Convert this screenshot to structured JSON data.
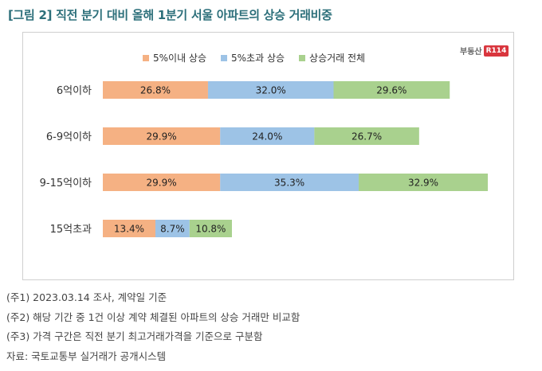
{
  "title": "[그림 2] 직전 분기 대비 올해 1분기 서울 아파트의 상승 거래비중",
  "logo": {
    "text": "부동산",
    "badge": "R114"
  },
  "colors": {
    "series1": "#f5b183",
    "series2": "#9dc3e6",
    "series3": "#a9d18e"
  },
  "chart_data": {
    "type": "bar",
    "orientation": "horizontal",
    "stacked": true,
    "categories": [
      "6억이하",
      "6-9억이하",
      "9-15억이하",
      "15억초과"
    ],
    "series": [
      {
        "name": "5%이내 상승",
        "values": [
          26.8,
          29.9,
          29.9,
          13.4
        ],
        "labels": [
          "26.8%",
          "29.9%",
          "29.9%",
          "13.4%"
        ]
      },
      {
        "name": "5%초과 상승",
        "values": [
          32.0,
          24.0,
          35.3,
          8.7
        ],
        "labels": [
          "32.0%",
          "24.0%",
          "35.3%",
          "8.7%"
        ]
      },
      {
        "name": "상승거래 전체",
        "values": [
          29.6,
          26.7,
          32.9,
          10.8
        ],
        "labels": [
          "29.6%",
          "26.7%",
          "32.9%",
          "10.8%"
        ]
      }
    ],
    "legend_position": "top"
  },
  "notes": [
    "(주1) 2023.03.14 조사, 계약일 기준",
    "(주2) 해당 기간 중 1건 이상 계약 체결된 아파트의 상승 거래만 비교함",
    "(주3) 가격 구간은 직전 분기 최고거래가격을 기준으로 구분함",
    "자료: 국토교통부 실거래가 공개시스템"
  ]
}
